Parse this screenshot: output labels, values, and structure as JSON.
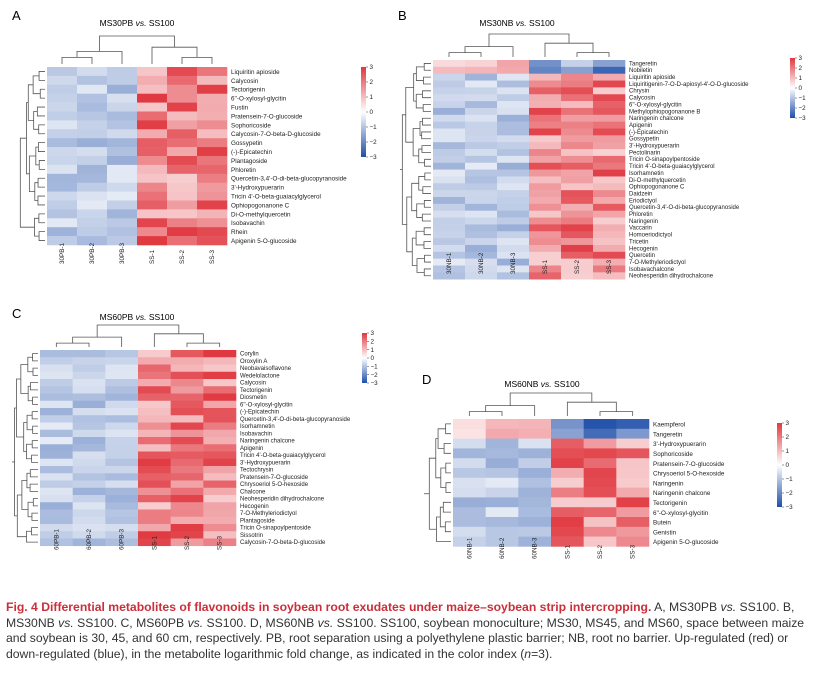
{
  "colors": {
    "up": "#e0373f",
    "down": "#1f4ea8",
    "neutral": "#ffffff",
    "caption_title": "#c9303b"
  },
  "panels": [
    {
      "id": "A",
      "letter": "A",
      "title_main": "MS30PB",
      "title_vs": "vs.",
      "title_ref": "SS100",
      "samples": [
        "30PB-1",
        "30PB-2",
        "30PB-3",
        "SS-1",
        "SS-2",
        "SS-3"
      ],
      "labels": [
        "Liquiritin apioside",
        "Calycosin",
        "Tectorigenin",
        "6''-O-xylosyl-glycitin",
        "Fustin",
        "Pratensein-7-O-glucoside",
        "Sophoricoside",
        "Calycosin-7-O-beta-D-glucoside",
        "Gossypetin",
        "(-)-Epicatechin",
        "Plantagoside",
        "Phloretin",
        "Quercetin-3,4'-O-di-beta-glucopyranoside",
        "3'-Hydroxypuerarin",
        "Tricin 4'-O-beta-guaiacylglycerol",
        "Ophiopogonanone C",
        "Di-O-methylquercetin",
        "Isobavachin",
        "Rhein",
        "Apigenin 5-O-glucoside"
      ],
      "legend_ticks": [
        "3",
        "2",
        "1",
        "0",
        "−1",
        "−2",
        "−3"
      ]
    },
    {
      "id": "B",
      "letter": "B",
      "title_main": "MS30NB",
      "title_vs": "vs.",
      "title_ref": "SS100",
      "samples": [
        "30NB-1",
        "30NB-2",
        "30NB-3",
        "SS-1",
        "SS-2",
        "SS-3"
      ],
      "labels": [
        "Tangeretin",
        "Nobiletin",
        "Liquiritin apioside",
        "Liquiritigenin-7-O-D-apiosyl-4'-O-D-glucoside",
        "Chrysin",
        "Calycosin",
        "6''-O-xylosyl-glycitin",
        "Methylophiopogonanone B",
        "Naringenin chalcone",
        "Apigenin",
        "(-)-Epicatechin",
        "Gossypetin",
        "3'-Hydroxypuerarin",
        "Pectolinarin",
        "Tricin O-sinapoylpentoside",
        "Tricin 4'-O-beta-guaiacylglycerol",
        "Isorhamnetin",
        "Di-O-methylquercetin",
        "Ophiopogonanone C",
        "Daidzein",
        "Eriodictyol",
        "Quercetin-3,4'-O-di-beta-glucopyranoside",
        "Phloretin",
        "Naringenin",
        "Vaccarin",
        "Homoeriodictyol",
        "Tricetin",
        "Hecogenin",
        "Quercetin",
        "7-O-Methyleriodictyol",
        "Isobavachalcone",
        "Neohesperidin dihydrochalcone"
      ],
      "legend_ticks": [
        "3",
        "2",
        "1",
        "0",
        "−1",
        "−2",
        "−3"
      ]
    },
    {
      "id": "C",
      "letter": "C",
      "title_main": "MS60PB",
      "title_vs": "vs.",
      "title_ref": "SS100",
      "samples": [
        "60PB-1",
        "60PB-2",
        "60PB-3",
        "SS-1",
        "SS-2",
        "SS-3"
      ],
      "labels": [
        "Corylin",
        "Oroxylin A",
        "Neobavaisoflavone",
        "Wedelolactone",
        "Calycosin",
        "Tectorigenin",
        "Diosmetin",
        "6''-O-xylosyl-glycitin",
        "(-)-Epicatechin",
        "Quercetin-3,4'-O-di-beta-glucopyranoside",
        "Isorhamnetin",
        "Isobavachin",
        "Naringenin chalcone",
        "Apigenin",
        "Tricin 4'-O-beta-guaiacylglycerol",
        "3'-Hydroxypuerarin",
        "Tectochrysin",
        "Pratensein-7-O-glucoside",
        "Chrysoeriol 5-O-hexoside",
        "Chalcone",
        "Neohesperidin dihydrochalcone",
        "Hecogenin",
        "7-O-Methyleriodictyol",
        "Plantagoside",
        "Tricin O-sinapoylpentoside",
        "Sissotrin",
        "Calycosin-7-O-beta-D-glucoside"
      ],
      "legend_ticks": [
        "3",
        "2",
        "1",
        "0",
        "−1",
        "−2",
        "−3"
      ]
    },
    {
      "id": "D",
      "letter": "D",
      "title_main": "MS60NB",
      "title_vs": "vs.",
      "title_ref": "SS100",
      "samples": [
        "60NB-1",
        "60NB-2",
        "60NB-3",
        "SS-1",
        "SS-2",
        "SS-3"
      ],
      "labels": [
        "Kaempferol",
        "Tangeretin",
        "3'-Hydroxypuerarin",
        "Sophoricoside",
        "Pratensein-7-O-glucoside",
        "Chrysoeriol 5-O-hexoside",
        "Naringenin",
        "Naringenin chalcone",
        "Tectorigenin",
        "6''-O-xylosyl-glycitin",
        "Butein",
        "Genistin",
        "Apigenin 5-O-glucoside"
      ],
      "legend_ticks": [
        "3",
        "2",
        "1",
        "0",
        "−1",
        "−2",
        "−3"
      ]
    }
  ],
  "caption": {
    "fig_label": "Fig. 4",
    "title": "Differential metabolites of flavonoids in soybean root exudates under maize–soybean strip intercropping.",
    "text_1": "A, MS30PB",
    "vs_1": "vs.",
    "text_2": "SS100. B, MS30NB",
    "vs_2": "vs.",
    "text_3": "SS100. C, MS60PB",
    "vs_3": "vs.",
    "text_4": "SS100. D, MS60NB",
    "vs_4": "vs.",
    "text_5": "SS100. SS100, soybean monoculture; MS30, MS45, and MS60, space between maize and soybean is 30, 45, and 60 cm, respectively. PB, root separation using a polyethylene plastic barrier; NB, root no barrier. Up-regulated (red) or down-regulated (blue), in the metabolite logarithmic fold change, as indicated in the color index (",
    "n_label": "n",
    "text_6": "=3)."
  }
}
